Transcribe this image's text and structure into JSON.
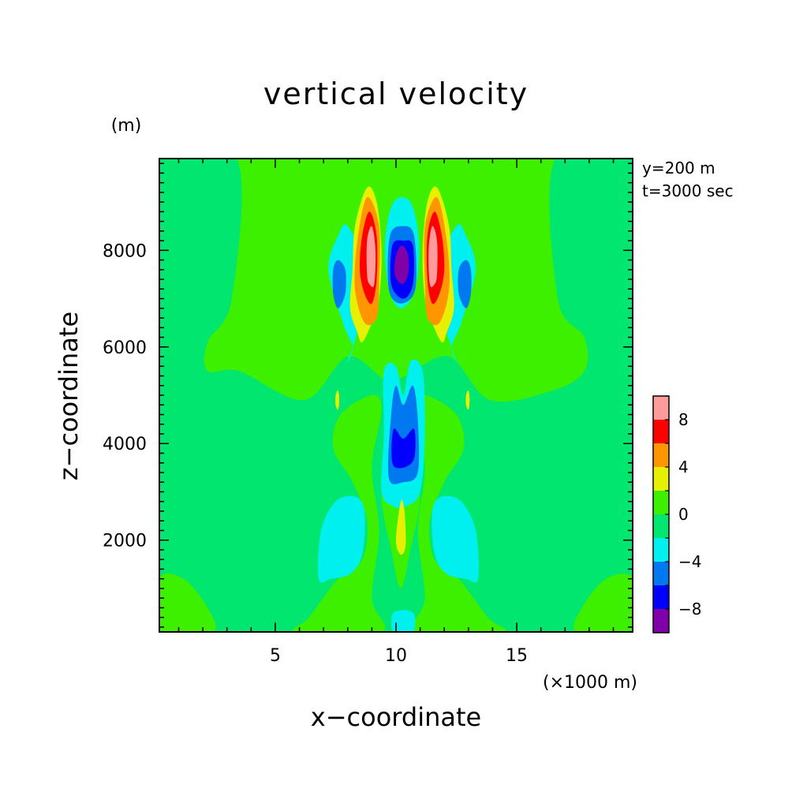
{
  "chart_data": {
    "type": "heatmap",
    "title": "vertical velocity",
    "xlabel": "x−coordinate",
    "ylabel": "z−coordinate",
    "x_unit": "(×1000 m)",
    "y_unit": "(m)",
    "annotations": [
      "y=200 m",
      "t=3000 sec"
    ],
    "xlim": [
      0.2,
      19.8
    ],
    "ylim": [
      100,
      9900
    ],
    "x_ticks": [
      5,
      10,
      15
    ],
    "y_ticks": [
      2000,
      4000,
      6000,
      8000
    ],
    "x_tick_labels": [
      "5",
      "10",
      "15"
    ],
    "y_tick_labels": [
      "2000",
      "4000",
      "6000",
      "8000"
    ],
    "colorbar": {
      "levels": [
        -10,
        -8,
        -6,
        -4,
        -2,
        0,
        2,
        4,
        6,
        8,
        10
      ],
      "tick_values": [
        -8,
        -4,
        0,
        4,
        8
      ],
      "tick_labels": [
        "−8",
        "−4",
        "0",
        "4",
        "8"
      ],
      "colors": [
        "#7f00a8",
        "#0000ff",
        "#0078f0",
        "#00f0f0",
        "#00e66e",
        "#3cf000",
        "#e6f000",
        "#ff9600",
        "#ff0000",
        "#ff9b9b"
      ]
    },
    "background_color": "#3cf000",
    "regions": [
      {
        "color": "#00e66e",
        "points": [
          [
            0.2,
            9900
          ],
          [
            3.4,
            9900
          ],
          [
            3.2,
            7000
          ],
          [
            2.2,
            6100
          ],
          [
            2.2,
            5500
          ],
          [
            3.5,
            5500
          ],
          [
            6.2,
            4900
          ],
          [
            8.0,
            5800
          ],
          [
            9.6,
            5300
          ],
          [
            10.4,
            5400
          ],
          [
            12.2,
            5800
          ],
          [
            13.9,
            4900
          ],
          [
            16.5,
            5100
          ],
          [
            17.8,
            5500
          ],
          [
            17.8,
            6200
          ],
          [
            16.7,
            7000
          ],
          [
            16.6,
            9900
          ],
          [
            19.8,
            9900
          ],
          [
            19.8,
            100
          ],
          [
            0.2,
            100
          ]
        ]
      },
      {
        "color": "#3cf000",
        "points": [
          [
            0.2,
            1200
          ],
          [
            1.2,
            1200
          ],
          [
            2.2,
            600
          ],
          [
            2.4,
            100
          ],
          [
            0.2,
            100
          ]
        ]
      },
      {
        "color": "#3cf000",
        "points": [
          [
            19.8,
            1200
          ],
          [
            18.7,
            1200
          ],
          [
            17.7,
            600
          ],
          [
            17.5,
            100
          ],
          [
            19.8,
            100
          ]
        ]
      },
      {
        "color": "#3cf000",
        "points": [
          [
            5.9,
            100
          ],
          [
            6.4,
            400
          ],
          [
            7.6,
            1200
          ],
          [
            8.6,
            1600
          ],
          [
            8.8,
            2400
          ],
          [
            8.2,
            3200
          ],
          [
            7.4,
            3900
          ],
          [
            7.7,
            4600
          ],
          [
            9.0,
            5000
          ],
          [
            9.4,
            4700
          ],
          [
            9.0,
            3500
          ],
          [
            9.3,
            2200
          ],
          [
            9.0,
            800
          ],
          [
            9.4,
            100
          ]
        ]
      },
      {
        "color": "#3cf000",
        "points": [
          [
            14.4,
            100
          ],
          [
            13.8,
            400
          ],
          [
            12.6,
            1200
          ],
          [
            11.6,
            1600
          ],
          [
            11.4,
            2400
          ],
          [
            12.0,
            3200
          ],
          [
            12.8,
            3900
          ],
          [
            12.5,
            4600
          ],
          [
            11.2,
            5000
          ],
          [
            10.8,
            4700
          ],
          [
            11.2,
            3500
          ],
          [
            10.9,
            2200
          ],
          [
            11.2,
            800
          ],
          [
            10.8,
            100
          ]
        ]
      },
      {
        "color": "#3cf000",
        "points": [
          [
            9.4,
            2900
          ],
          [
            9.8,
            1800
          ],
          [
            10.2,
            1000
          ],
          [
            10.6,
            1800
          ],
          [
            11.0,
            2900
          ],
          [
            10.6,
            3600
          ],
          [
            10.2,
            3900
          ],
          [
            9.8,
            3600
          ]
        ]
      },
      {
        "color": "#00f0f0",
        "points": [
          [
            6.8,
            1200
          ],
          [
            6.9,
            2200
          ],
          [
            7.5,
            2800
          ],
          [
            8.3,
            2900
          ],
          [
            8.7,
            2600
          ],
          [
            8.6,
            1700
          ],
          [
            8.1,
            1300
          ],
          [
            7.3,
            1200
          ]
        ]
      },
      {
        "color": "#00f0f0",
        "points": [
          [
            13.4,
            1200
          ],
          [
            13.3,
            2200
          ],
          [
            12.7,
            2800
          ],
          [
            11.9,
            2900
          ],
          [
            11.5,
            2600
          ],
          [
            11.6,
            1700
          ],
          [
            12.1,
            1300
          ],
          [
            12.9,
            1200
          ]
        ]
      },
      {
        "color": "#00f0f0",
        "points": [
          [
            9.9,
            100
          ],
          [
            10.7,
            100
          ],
          [
            10.7,
            500
          ],
          [
            9.9,
            500
          ]
        ]
      },
      {
        "color": "#00f0f0",
        "points": [
          [
            9.4,
            3000
          ],
          [
            9.5,
            4200
          ],
          [
            9.5,
            5500
          ],
          [
            10.0,
            5600
          ],
          [
            10.3,
            5000
          ],
          [
            10.6,
            5700
          ],
          [
            11.1,
            5500
          ],
          [
            11.2,
            4200
          ],
          [
            11.0,
            3000
          ],
          [
            10.4,
            2700
          ],
          [
            9.9,
            2700
          ]
        ]
      },
      {
        "color": "#0078f0",
        "points": [
          [
            9.7,
            3300
          ],
          [
            9.8,
            4600
          ],
          [
            10.0,
            5200
          ],
          [
            10.3,
            4800
          ],
          [
            10.7,
            5200
          ],
          [
            10.9,
            4500
          ],
          [
            10.9,
            3400
          ],
          [
            10.3,
            3200
          ]
        ]
      },
      {
        "color": "#0000ff",
        "points": [
          [
            9.85,
            3600
          ],
          [
            9.9,
            4300
          ],
          [
            10.3,
            4100
          ],
          [
            10.75,
            4300
          ],
          [
            10.75,
            3700
          ],
          [
            10.3,
            3500
          ]
        ]
      },
      {
        "color": "#e6f000",
        "points": [
          [
            10.0,
            2000
          ],
          [
            10.2,
            2800
          ],
          [
            10.35,
            2600
          ],
          [
            10.4,
            1900
          ],
          [
            10.2,
            1700
          ]
        ]
      },
      {
        "color": "#00f0f0",
        "points": [
          [
            7.2,
            7600
          ],
          [
            7.8,
            6500
          ],
          [
            8.2,
            6000
          ],
          [
            8.0,
            5700
          ],
          [
            8.5,
            6500
          ],
          [
            8.8,
            7600
          ],
          [
            8.0,
            8500
          ],
          [
            7.6,
            8300
          ]
        ]
      },
      {
        "color": "#00f0f0",
        "points": [
          [
            13.3,
            7600
          ],
          [
            12.7,
            6500
          ],
          [
            12.3,
            6000
          ],
          [
            12.5,
            5700
          ],
          [
            12.0,
            6500
          ],
          [
            11.7,
            7600
          ],
          [
            12.5,
            8500
          ],
          [
            12.9,
            8300
          ]
        ]
      },
      {
        "color": "#0078f0",
        "points": [
          [
            7.4,
            7100
          ],
          [
            7.6,
            6800
          ],
          [
            7.9,
            7100
          ],
          [
            7.9,
            7600
          ],
          [
            7.6,
            7800
          ],
          [
            7.4,
            7600
          ]
        ]
      },
      {
        "color": "#0078f0",
        "points": [
          [
            13.1,
            7100
          ],
          [
            12.9,
            6800
          ],
          [
            12.6,
            7100
          ],
          [
            12.6,
            7600
          ],
          [
            12.9,
            7800
          ],
          [
            13.1,
            7600
          ]
        ]
      },
      {
        "color": "#e6f000",
        "points": [
          [
            8.1,
            6800
          ],
          [
            8.2,
            7600
          ],
          [
            8.3,
            8500
          ],
          [
            8.8,
            9300
          ],
          [
            9.2,
            9000
          ],
          [
            9.4,
            8000
          ],
          [
            9.3,
            7000
          ],
          [
            9.0,
            6500
          ],
          [
            8.6,
            6100
          ],
          [
            8.4,
            6300
          ]
        ]
      },
      {
        "color": "#e6f000",
        "points": [
          [
            12.4,
            6800
          ],
          [
            12.3,
            7600
          ],
          [
            12.2,
            8500
          ],
          [
            11.7,
            9300
          ],
          [
            11.3,
            9000
          ],
          [
            11.1,
            8000
          ],
          [
            11.2,
            7000
          ],
          [
            11.5,
            6500
          ],
          [
            11.9,
            6100
          ],
          [
            12.1,
            6300
          ]
        ]
      },
      {
        "color": "#ff9600",
        "points": [
          [
            8.3,
            7200
          ],
          [
            8.4,
            8200
          ],
          [
            8.8,
            9100
          ],
          [
            9.3,
            8500
          ],
          [
            9.3,
            7300
          ],
          [
            9.2,
            6600
          ],
          [
            8.7,
            6500
          ]
        ]
      },
      {
        "color": "#ff9600",
        "points": [
          [
            12.2,
            7200
          ],
          [
            12.1,
            8200
          ],
          [
            11.7,
            9100
          ],
          [
            11.2,
            8500
          ],
          [
            11.2,
            7300
          ],
          [
            11.3,
            6600
          ],
          [
            11.8,
            6500
          ]
        ]
      },
      {
        "color": "#ff0000",
        "points": [
          [
            8.5,
            7600
          ],
          [
            8.6,
            8300
          ],
          [
            8.9,
            8800
          ],
          [
            9.2,
            8300
          ],
          [
            9.2,
            7400
          ],
          [
            9.0,
            6900
          ],
          [
            8.7,
            7100
          ]
        ]
      },
      {
        "color": "#ff0000",
        "points": [
          [
            12.0,
            7600
          ],
          [
            11.9,
            8300
          ],
          [
            11.6,
            8800
          ],
          [
            11.3,
            8300
          ],
          [
            11.3,
            7400
          ],
          [
            11.5,
            6900
          ],
          [
            11.8,
            7100
          ]
        ]
      },
      {
        "color": "#ff9b9b",
        "points": [
          [
            8.8,
            7500
          ],
          [
            8.8,
            8200
          ],
          [
            9.0,
            8500
          ],
          [
            9.15,
            8000
          ],
          [
            9.1,
            7300
          ],
          [
            8.9,
            7300
          ]
        ]
      },
      {
        "color": "#ff9b9b",
        "points": [
          [
            11.7,
            7500
          ],
          [
            11.7,
            8200
          ],
          [
            11.5,
            8500
          ],
          [
            11.35,
            8000
          ],
          [
            11.4,
            7300
          ],
          [
            11.6,
            7300
          ]
        ]
      },
      {
        "color": "#00f0f0",
        "points": [
          [
            9.7,
            7200
          ],
          [
            9.55,
            8200
          ],
          [
            9.9,
            9000
          ],
          [
            10.6,
            9000
          ],
          [
            10.95,
            8200
          ],
          [
            10.8,
            7200
          ],
          [
            10.2,
            6800
          ]
        ]
      },
      {
        "color": "#0078f0",
        "points": [
          [
            9.7,
            7200
          ],
          [
            9.75,
            8300
          ],
          [
            10.3,
            8500
          ],
          [
            10.75,
            8300
          ],
          [
            10.8,
            7200
          ],
          [
            10.2,
            6900
          ]
        ]
      },
      {
        "color": "#0000ff",
        "points": [
          [
            9.8,
            7300
          ],
          [
            9.85,
            8100
          ],
          [
            10.3,
            8200
          ],
          [
            10.7,
            8100
          ],
          [
            10.7,
            7300
          ],
          [
            10.3,
            7000
          ]
        ]
      },
      {
        "color": "#7f00a8",
        "points": [
          [
            9.95,
            7500
          ],
          [
            10.0,
            7900
          ],
          [
            10.25,
            8100
          ],
          [
            10.5,
            7900
          ],
          [
            10.5,
            7500
          ],
          [
            10.25,
            7300
          ]
        ]
      },
      {
        "color": "#e6f000",
        "points": [
          [
            7.5,
            5000
          ],
          [
            7.6,
            5100
          ],
          [
            7.65,
            4900
          ],
          [
            7.6,
            4700
          ],
          [
            7.5,
            4800
          ]
        ]
      },
      {
        "color": "#e6f000",
        "points": [
          [
            12.9,
            5000
          ],
          [
            13.0,
            5100
          ],
          [
            13.05,
            4900
          ],
          [
            13.0,
            4700
          ],
          [
            12.9,
            4800
          ]
        ]
      }
    ]
  }
}
